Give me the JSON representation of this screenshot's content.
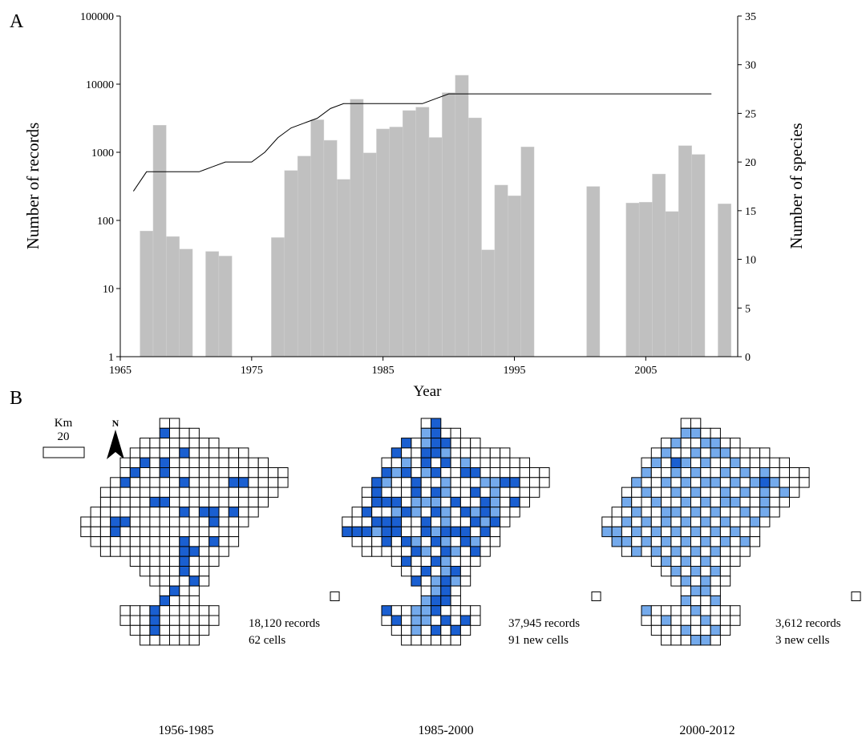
{
  "panel_a_label": "A",
  "panel_b_label": "B",
  "chart_data": {
    "type": "bar",
    "xlabel": "Year",
    "ylabel": "Number of records",
    "y2label": "Number of species",
    "yscale": "log",
    "ylim": [
      1,
      100000
    ],
    "y2lim": [
      0,
      35
    ],
    "xlim": [
      1965,
      2012
    ],
    "grid": false,
    "x_ticks": [
      "1965",
      "1975",
      "1985",
      "1995",
      "2005"
    ],
    "y_ticks": [
      "1",
      "10",
      "100",
      "1000",
      "10000",
      "100000"
    ],
    "y2_ticks": [
      "0",
      "5",
      "10",
      "15",
      "20",
      "25",
      "30",
      "35"
    ],
    "bar_color": "#c0c0c0",
    "line_color": "#000000",
    "series": [
      {
        "type": "bar",
        "points": [
          [
            1967,
            70
          ],
          [
            1968,
            2500
          ],
          [
            1969,
            58
          ],
          [
            1970,
            38
          ],
          [
            1972,
            35
          ],
          [
            1973,
            30
          ],
          [
            1977,
            56
          ],
          [
            1978,
            540
          ],
          [
            1979,
            880
          ],
          [
            1980,
            3000
          ],
          [
            1981,
            1500
          ],
          [
            1982,
            400
          ],
          [
            1983,
            6000
          ],
          [
            1984,
            980
          ],
          [
            1985,
            2200
          ],
          [
            1986,
            2350
          ],
          [
            1987,
            4100
          ],
          [
            1988,
            4600
          ],
          [
            1989,
            1650
          ],
          [
            1990,
            7500
          ],
          [
            1991,
            13500
          ],
          [
            1992,
            3200
          ],
          [
            1993,
            37
          ],
          [
            1994,
            330
          ],
          [
            1995,
            230
          ],
          [
            1996,
            1200
          ],
          [
            2001,
            315
          ],
          [
            2004,
            180
          ],
          [
            2005,
            185
          ],
          [
            2006,
            480
          ],
          [
            2007,
            135
          ],
          [
            2008,
            1250
          ],
          [
            2009,
            930
          ],
          [
            2011,
            175
          ]
        ]
      },
      {
        "type": "line",
        "axis": "right",
        "x": [
          1966,
          1967,
          1968,
          1969,
          1970,
          1971,
          1972,
          1973,
          1974,
          1975,
          1976,
          1977,
          1978,
          1979,
          1980,
          1981,
          1982,
          1983,
          1984,
          1985,
          1986,
          1987,
          1988,
          1989,
          1990,
          1991,
          1992,
          1993,
          1994,
          1995,
          1996,
          1997,
          1998,
          1999,
          2000,
          2001,
          2002,
          2003,
          2004,
          2005,
          2006,
          2007,
          2008,
          2009,
          2010
        ],
        "y": [
          17,
          19,
          19,
          19,
          19,
          19,
          19.5,
          20,
          20,
          20,
          21,
          22.5,
          23.5,
          24,
          24.5,
          25.5,
          26,
          26,
          26,
          26,
          26,
          26,
          26,
          26.5,
          27,
          27,
          27,
          27,
          27,
          27,
          27,
          27,
          27,
          27,
          27,
          27,
          27,
          27,
          27,
          27,
          27,
          27,
          27,
          27,
          27
        ]
      }
    ]
  },
  "scale_bar": {
    "unit": "Km",
    "value": "20"
  },
  "north_label": "N",
  "maps": [
    {
      "period": "1956-1985",
      "records": "18,120 records",
      "cells": "62 cells"
    },
    {
      "period": "1985-2000",
      "records": "37,945 records",
      "cells": "91 new cells"
    },
    {
      "period": "2000-2012",
      "records": "3,612 records",
      "cells": "3 new cells"
    }
  ],
  "colors": {
    "new_cell": "#1a5fd1",
    "previous_cell": "#74aaec",
    "empty_cell": "#ffffff",
    "grid_line": "#000000"
  }
}
